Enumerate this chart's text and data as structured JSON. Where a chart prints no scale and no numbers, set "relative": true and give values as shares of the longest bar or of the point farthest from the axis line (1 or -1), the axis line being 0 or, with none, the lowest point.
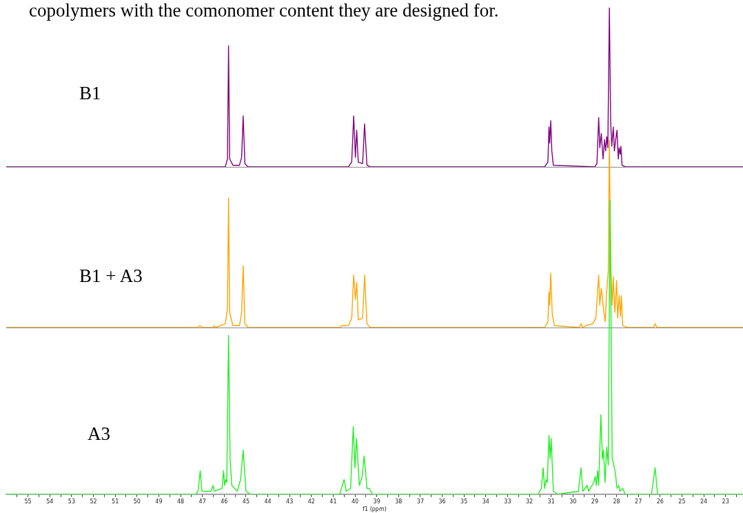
{
  "chart_data": [
    {
      "type": "line",
      "title": "copolymers with the comonomer content they are designed for.",
      "relative": true,
      "tick_labels": false,
      "xlim": [
        56,
        22.2
      ],
      "x": [
        56,
        47,
        45.95,
        45.85,
        45.8,
        45.75,
        45.6,
        45.3,
        45.2,
        45.13,
        45.05,
        44.9,
        40.3,
        40.15,
        40.06,
        39.98,
        39.92,
        39.85,
        39.65,
        39.56,
        39.45,
        39.3,
        31.3,
        31.15,
        31.1,
        31.07,
        31.02,
        30.97,
        30.9,
        29.0,
        28.9,
        28.82,
        28.77,
        28.7,
        28.62,
        28.55,
        28.5,
        28.45,
        28.4,
        28.33,
        28.27,
        28.22,
        28.15,
        28.1,
        28.05,
        27.98,
        27.92,
        27.88,
        27.83,
        27.8,
        27.75,
        27.6,
        22.2
      ],
      "series": [
        {
          "name": "B1",
          "color": "#800080",
          "values": [
            0,
            0,
            0,
            0.05,
            0.76,
            0.05,
            0.01,
            0.01,
            0.06,
            0.32,
            0.02,
            0,
            0,
            0.03,
            0.32,
            0.06,
            0.23,
            0.03,
            0.02,
            0.27,
            0.01,
            0,
            0,
            0.03,
            0.25,
            0.15,
            0.29,
            0.1,
            0.01,
            0,
            0.02,
            0.31,
            0.12,
            0.21,
            0.05,
            0.17,
            0.1,
            0.19,
            0.12,
            1,
            0.28,
            0.13,
            0.25,
            0.1,
            0.16,
            0.23,
            0.05,
            0.12,
            0.08,
            0.13,
            0.01,
            0,
            0
          ]
        }
      ]
    },
    {
      "type": "line",
      "relative": true,
      "tick_labels": false,
      "xlim": [
        56,
        22.2
      ],
      "x": [
        56,
        47.2,
        47.12,
        47.0,
        46.5,
        46.45,
        46.4,
        45.95,
        45.85,
        45.8,
        45.75,
        45.6,
        45.3,
        45.2,
        45.13,
        45.05,
        44.9,
        40.7,
        40.6,
        40.3,
        40.15,
        40.06,
        39.98,
        39.92,
        39.85,
        39.65,
        39.56,
        39.45,
        39.3,
        31.3,
        31.15,
        31.1,
        31.07,
        31.02,
        30.95,
        30.85,
        29.7,
        29.63,
        29.55,
        29.4,
        29.1,
        28.95,
        28.82,
        28.77,
        28.7,
        28.62,
        28.52,
        28.45,
        28.38,
        28.33,
        28.27,
        28.2,
        28.15,
        28.08,
        28.0,
        27.95,
        27.88,
        27.82,
        27.78,
        27.72,
        27.5,
        26.3,
        26.23,
        26.15,
        22.2
      ],
      "series": [
        {
          "name": "B1 + A3",
          "color": "#ffa500",
          "values": [
            0,
            0,
            0.01,
            0,
            0,
            0.01,
            0,
            0.02,
            0.1,
            0.69,
            0.08,
            0.01,
            0.01,
            0.08,
            0.33,
            0.02,
            0,
            0,
            0.01,
            0.01,
            0.05,
            0.28,
            0.15,
            0.24,
            0.04,
            0.05,
            0.28,
            0.02,
            0,
            0,
            0.03,
            0.19,
            0.12,
            0.29,
            0.07,
            0.01,
            0,
            0.02,
            0,
            0.01,
            0.02,
            0.05,
            0.28,
            0.12,
            0.21,
            0.12,
            0.03,
            0.2,
            0.3,
            1,
            0.35,
            0.12,
            0.27,
            0.08,
            0.25,
            0.05,
            0.17,
            0.06,
            0.17,
            0.01,
            0,
            0,
            0.02,
            0,
            0
          ]
        }
      ]
    },
    {
      "type": "line",
      "relative": true,
      "tick_labels": "x",
      "xlabel": "f1 (ppm)",
      "xlim": [
        56,
        22.2
      ],
      "xticks": [
        {
          "value": 55.5,
          "label": null
        },
        55,
        {
          "value": 54.5,
          "label": null
        },
        54,
        {
          "value": 53.5,
          "label": null
        },
        53,
        {
          "value": 52.5,
          "label": null
        },
        52,
        {
          "value": 51.5,
          "label": null
        },
        51,
        {
          "value": 50.5,
          "label": null
        },
        50,
        {
          "value": 49.5,
          "label": null
        },
        49,
        {
          "value": 48.5,
          "label": null
        },
        48,
        {
          "value": 47.5,
          "label": null
        },
        47,
        {
          "value": 46.5,
          "label": null
        },
        46,
        {
          "value": 45.5,
          "label": null
        },
        45,
        {
          "value": 44.5,
          "label": null
        },
        44,
        {
          "value": 43.5,
          "label": null
        },
        43,
        {
          "value": 42.5,
          "label": null
        },
        42,
        {
          "value": 41.5,
          "label": null
        },
        41,
        {
          "value": 40.5,
          "label": null
        },
        40,
        {
          "value": 39.5,
          "label": null
        },
        39,
        {
          "value": 38.5,
          "label": null
        },
        38,
        {
          "value": 37.5,
          "label": null
        },
        37,
        {
          "value": 36.5,
          "label": null
        },
        36,
        {
          "value": 35.5,
          "label": null
        },
        35,
        {
          "value": 34.5,
          "label": null
        },
        34,
        {
          "value": 33.5,
          "label": null
        },
        33,
        {
          "value": 32.5,
          "label": null
        },
        32,
        {
          "value": 31.5,
          "label": null
        },
        31,
        {
          "value": 30.5,
          "label": null
        },
        30,
        {
          "value": 29.5,
          "label": null
        },
        29,
        {
          "value": 28.5,
          "label": null
        },
        28,
        {
          "value": 27.5,
          "label": null
        },
        27,
        {
          "value": 26.5,
          "label": null
        },
        26,
        {
          "value": 25.5,
          "label": null
        },
        25,
        {
          "value": 24.5,
          "label": null
        },
        24,
        {
          "value": 23.5,
          "label": null
        },
        23,
        {
          "value": 22.5,
          "label": null
        }
      ],
      "x": [
        56,
        47.3,
        47.2,
        47.1,
        47.02,
        46.6,
        46.52,
        46.45,
        46.1,
        46.03,
        45.98,
        45.93,
        45.88,
        45.8,
        45.73,
        45.65,
        45.4,
        45.25,
        45.13,
        45.0,
        44.8,
        40.7,
        40.5,
        40.4,
        40.2,
        40.08,
        40.0,
        39.93,
        39.8,
        39.67,
        39.58,
        39.45,
        39.35,
        39.2,
        31.6,
        31.45,
        31.37,
        31.3,
        31.23,
        31.18,
        31.1,
        31.05,
        31.0,
        30.9,
        30.7,
        29.75,
        29.63,
        29.55,
        29.35,
        29.28,
        29.05,
        28.98,
        28.93,
        28.87,
        28.82,
        28.72,
        28.65,
        28.6,
        28.53,
        28.45,
        28.38,
        28.3,
        28.2,
        28.13,
        28.05,
        27.98,
        27.9,
        27.85,
        27.72,
        27.6,
        26.4,
        26.23,
        26.12,
        22.2
      ],
      "series": [
        {
          "name": "A3",
          "color": "#22ee22",
          "values": [
            0,
            0,
            0.01,
            0.08,
            0.01,
            0.01,
            0.03,
            0.01,
            0.02,
            0.08,
            0.03,
            0.05,
            0.04,
            0.54,
            0.12,
            0.03,
            0.01,
            0.05,
            0.15,
            0.01,
            0,
            0,
            0.05,
            0.01,
            0.02,
            0.23,
            0.09,
            0.19,
            0.03,
            0.06,
            0.13,
            0.02,
            0.02,
            0,
            0,
            0.02,
            0.09,
            0.02,
            0.05,
            0.04,
            0.2,
            0.12,
            0.19,
            0.01,
            0,
            0.01,
            0.09,
            0.01,
            0.03,
            0.01,
            0.04,
            0.06,
            0.03,
            0.08,
            0.03,
            0.27,
            0.12,
            0.15,
            0.04,
            0.16,
            0.1,
            1,
            0.12,
            0.1,
            0.07,
            0.02,
            0.03,
            0.01,
            0.02,
            0,
            0,
            0.09,
            0,
            0
          ]
        }
      ]
    }
  ]
}
